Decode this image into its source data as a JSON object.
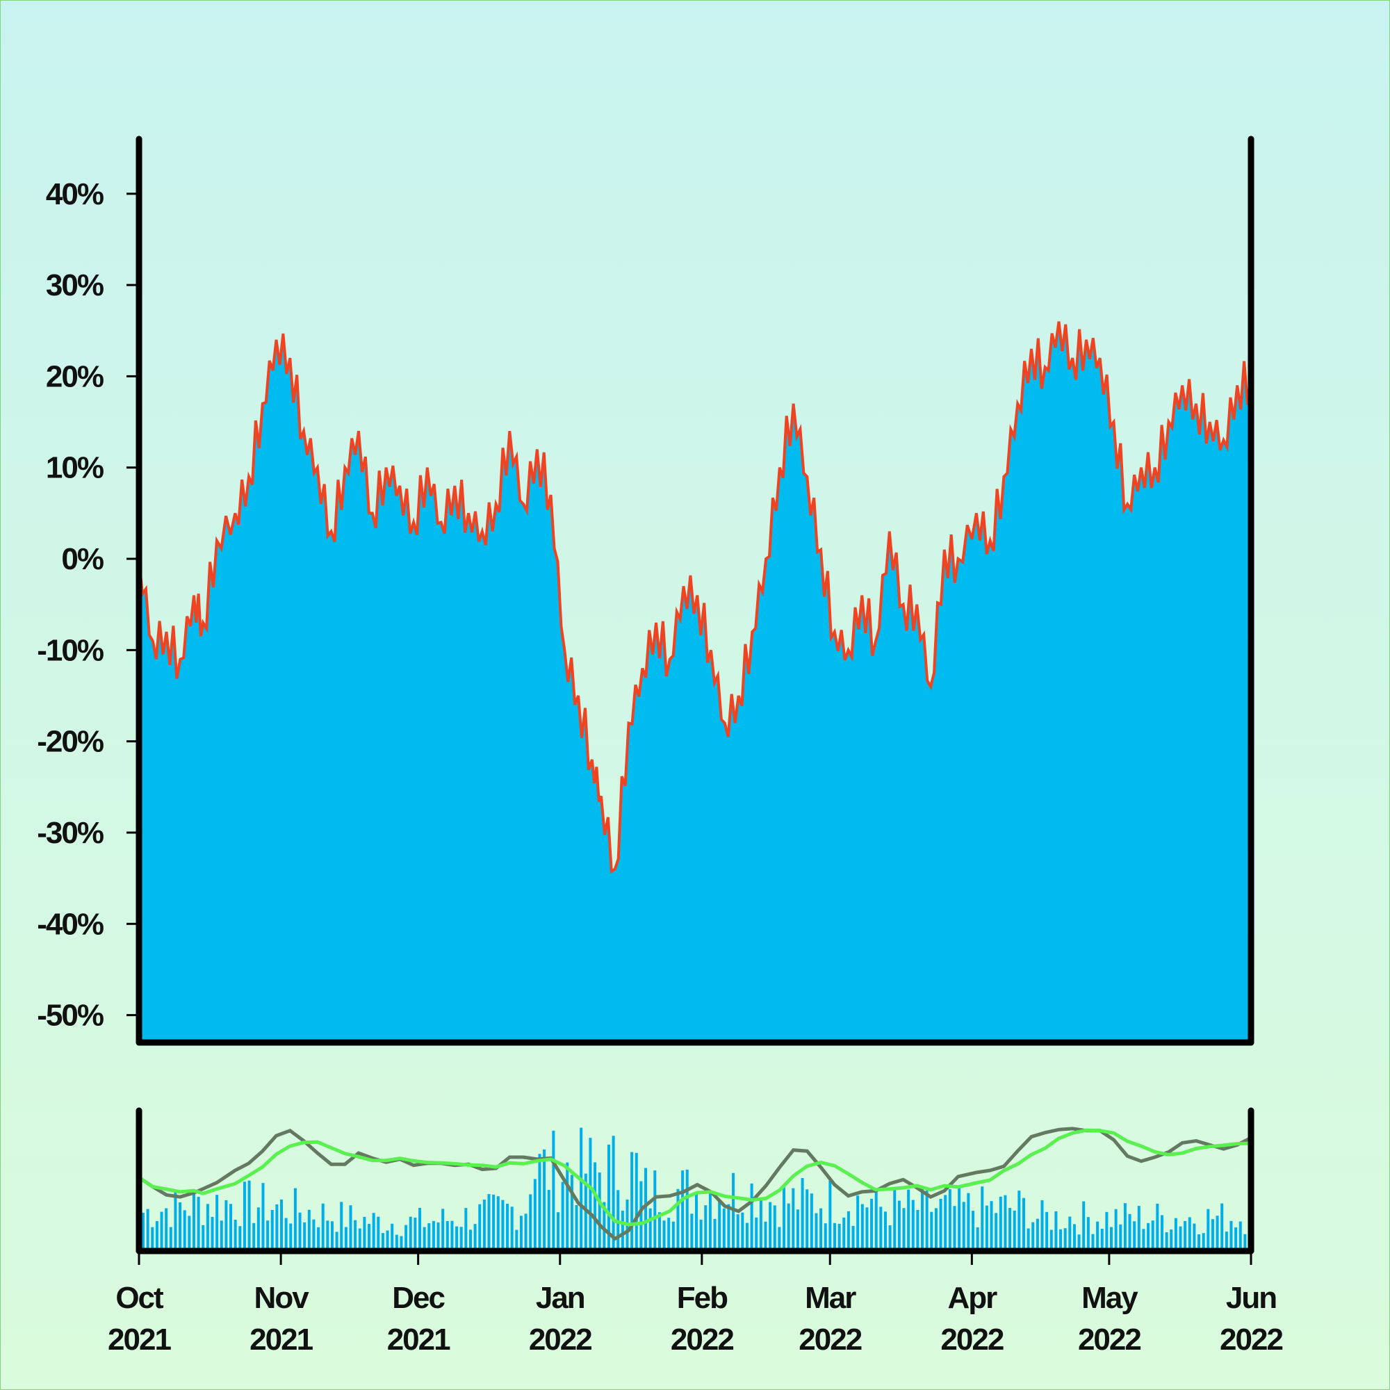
{
  "chart_data": [
    {
      "type": "area",
      "title": "",
      "xlabel": "",
      "ylabel": "",
      "x_range": [
        "2021-10-01",
        "2022-06-01"
      ],
      "ylim": [
        -53,
        46
      ],
      "y_ticks": [
        40,
        30,
        20,
        10,
        0,
        -10,
        -20,
        -30,
        -40,
        -50
      ],
      "y_tick_labels": [
        "40%",
        "30%",
        "20%",
        "10%",
        "0%",
        "-10%",
        "-20%",
        "-30%",
        "-40%",
        "-50%"
      ],
      "fill_color": "#00bbf0",
      "line_color": "#ee4422",
      "series": [
        {
          "dates": [
            "2021-10-01",
            "2021-10-04",
            "2021-10-07",
            "2021-10-10",
            "2021-10-13",
            "2021-10-15",
            "2021-10-18",
            "2021-10-22",
            "2021-10-25",
            "2021-10-28",
            "2021-10-31",
            "2021-11-03",
            "2021-11-06",
            "2021-11-09",
            "2021-11-12",
            "2021-11-15",
            "2021-11-18",
            "2021-11-21",
            "2021-11-24",
            "2021-11-27",
            "2021-11-30",
            "2021-12-03",
            "2021-12-06",
            "2021-12-09",
            "2021-12-12",
            "2021-12-15",
            "2021-12-18",
            "2021-12-21",
            "2021-12-24",
            "2021-12-27",
            "2021-12-30",
            "2022-01-02",
            "2022-01-05",
            "2022-01-08",
            "2022-01-10",
            "2022-01-13",
            "2022-01-16",
            "2022-01-19",
            "2022-01-22",
            "2022-01-25",
            "2022-01-28",
            "2022-01-31",
            "2022-02-03",
            "2022-02-06",
            "2022-02-09",
            "2022-02-12",
            "2022-02-15",
            "2022-02-18",
            "2022-02-21",
            "2022-02-24",
            "2022-02-27",
            "2022-03-02",
            "2022-03-05",
            "2022-03-08",
            "2022-03-11",
            "2022-03-14",
            "2022-03-17",
            "2022-03-20",
            "2022-03-23",
            "2022-03-26",
            "2022-03-29",
            "2022-04-02",
            "2022-04-05",
            "2022-04-08",
            "2022-04-11",
            "2022-04-14",
            "2022-04-17",
            "2022-04-20",
            "2022-04-23",
            "2022-04-26",
            "2022-04-29",
            "2022-05-02",
            "2022-05-05",
            "2022-05-08",
            "2022-05-11",
            "2022-05-14",
            "2022-05-17",
            "2022-05-20",
            "2022-05-23",
            "2022-05-26",
            "2022-05-29",
            "2022-06-01"
          ],
          "values": [
            0,
            -9,
            -8,
            -11,
            -4,
            -7,
            2,
            5,
            9,
            17,
            24,
            22,
            14,
            10,
            3,
            10,
            14,
            5,
            10,
            8,
            4,
            10,
            4,
            8,
            5,
            3,
            6,
            14,
            6,
            12,
            7,
            -10,
            -15,
            -22,
            -26,
            -34,
            -18,
            -12,
            -7,
            -11,
            -3,
            -4,
            -10,
            -18,
            -15,
            -8,
            0,
            10,
            17,
            9,
            1,
            -8,
            -10,
            -4,
            -9,
            3,
            -5,
            -5,
            -14,
            1,
            0,
            5,
            2,
            9,
            17,
            23,
            21,
            26,
            22,
            24,
            22,
            15,
            6,
            10,
            10,
            15,
            19,
            17,
            15,
            13,
            19,
            20
          ]
        }
      ]
    },
    {
      "type": "bar",
      "title": "",
      "x_range": [
        "2021-10-01",
        "2022-06-01"
      ],
      "x_tick_labels": [
        {
          "month": "Oct",
          "year": "2021"
        },
        {
          "month": "Nov",
          "year": "2021"
        },
        {
          "month": "Dec",
          "year": "2021"
        },
        {
          "month": "Jan",
          "year": "2022"
        },
        {
          "month": "Feb",
          "year": "2022"
        },
        {
          "month": "Mar",
          "year": "2022"
        },
        {
          "month": "Apr",
          "year": "2022"
        },
        {
          "month": "May",
          "year": "2022"
        },
        {
          "month": "Jun",
          "year": "2022"
        }
      ],
      "bar_color": "#00aee8",
      "overlay_lines": [
        {
          "color": "#647a60"
        },
        {
          "color": "#5af050"
        }
      ]
    }
  ]
}
